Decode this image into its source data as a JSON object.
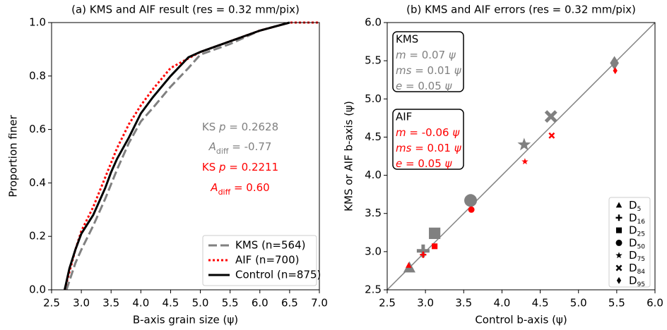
{
  "chart_data": [
    {
      "type": "line",
      "title": "(a) KMS and AIF result (res = 0.32 mm/pix)",
      "xlabel": "B-axis grain size (ψ)",
      "ylabel": "Proportion finer",
      "xlim": [
        2.5,
        7.0
      ],
      "xticks": [
        2.5,
        {
          "value": 3,
          "label": "3.0"
        },
        3.5,
        {
          "value": 4,
          "label": "4.0"
        },
        4.5,
        {
          "value": 5,
          "label": "5.0"
        },
        5.5,
        {
          "value": 6,
          "label": "6.0"
        },
        6.5,
        {
          "value": 7,
          "label": "7.0"
        }
      ],
      "ylim": [
        0,
        1
      ],
      "yticks": [
        {
          "value": 0,
          "label": "0.0"
        },
        0.2,
        0.4,
        0.6,
        0.8,
        {
          "value": 1,
          "label": "1.0"
        }
      ],
      "legend": "lower right",
      "series": [
        {
          "name": "KMS (n=564)",
          "color": "#808080",
          "dash": "dashed",
          "x": [
            2.75,
            2.9,
            3.0,
            3.2,
            3.4,
            3.6,
            3.8,
            4.0,
            4.2,
            4.5,
            4.8,
            5.0,
            5.5,
            6.0,
            6.5
          ],
          "values": [
            0,
            0.1,
            0.15,
            0.24,
            0.34,
            0.45,
            0.55,
            0.63,
            0.68,
            0.76,
            0.83,
            0.88,
            0.92,
            0.97,
            1.0
          ]
        },
        {
          "name": "AIF (n=700)",
          "color": "#ff0000",
          "dash": "dotted",
          "x": [
            2.72,
            2.9,
            3.0,
            3.2,
            3.4,
            3.6,
            3.8,
            4.0,
            4.2,
            4.5,
            5.0,
            5.5,
            6.0,
            6.5,
            7.0
          ],
          "values": [
            0,
            0.15,
            0.22,
            0.31,
            0.42,
            0.53,
            0.62,
            0.69,
            0.75,
            0.83,
            0.89,
            0.93,
            0.97,
            1.0,
            1.0
          ]
        },
        {
          "name": "Control (n=875)",
          "color": "#000000",
          "dash": "solid",
          "x": [
            2.72,
            2.8,
            2.9,
            3.0,
            3.2,
            3.4,
            3.5,
            3.6,
            3.8,
            4.0,
            4.2,
            4.5,
            4.8,
            5.0,
            5.5,
            6.0,
            6.5
          ],
          "values": [
            0,
            0.08,
            0.15,
            0.21,
            0.28,
            0.38,
            0.44,
            0.49,
            0.57,
            0.66,
            0.72,
            0.8,
            0.87,
            0.89,
            0.93,
            0.97,
            1.0
          ]
        }
      ],
      "annotations": [
        {
          "color": "#808080",
          "parts": [
            {
              "text": "KS ",
              "style": "normal"
            },
            {
              "text": "p",
              "style": "italic"
            },
            {
              "text": " = 0.2628",
              "style": "normal"
            }
          ]
        },
        {
          "color": "#808080",
          "parts": [
            {
              "text": "A",
              "style": "italic"
            },
            {
              "text": "diff",
              "style": "sub"
            },
            {
              "text": " = -0.77",
              "style": "normal"
            }
          ]
        },
        {
          "color": "#ff0000",
          "parts": [
            {
              "text": "KS ",
              "style": "normal"
            },
            {
              "text": "p",
              "style": "italic"
            },
            {
              "text": " = 0.2211",
              "style": "normal"
            }
          ]
        },
        {
          "color": "#ff0000",
          "parts": [
            {
              "text": "A",
              "style": "italic"
            },
            {
              "text": "diff",
              "style": "sub"
            },
            {
              "text": " = 0.60",
              "style": "normal"
            }
          ]
        }
      ]
    },
    {
      "type": "scatter",
      "title": "(b) KMS and AIF errors (res = 0.32 mm/pix)",
      "xlabel": "Control b-axis (ψ)",
      "ylabel": "KMS or AIF b-axis (ψ)",
      "xlim": [
        2.5,
        6.0
      ],
      "xticks": [
        2.5,
        {
          "value": 3,
          "label": "3.0"
        },
        3.5,
        {
          "value": 4,
          "label": "4.0"
        },
        4.5,
        {
          "value": 5,
          "label": "5.0"
        },
        5.5,
        {
          "value": 6,
          "label": "6.0"
        }
      ],
      "ylim": [
        2.5,
        6.0
      ],
      "yticks": [
        2.5,
        {
          "value": 3,
          "label": "3.0"
        },
        3.5,
        {
          "value": 4,
          "label": "4.0"
        },
        4.5,
        {
          "value": 5,
          "label": "5.0"
        },
        5.5,
        {
          "value": 6,
          "label": "6.0"
        }
      ],
      "diagonal": true,
      "series": [
        {
          "name": "KMS",
          "color": "#808080",
          "x": [
            2.79,
            2.97,
            3.12,
            3.59,
            4.29,
            4.64,
            5.47
          ],
          "values": [
            2.79,
            3.01,
            3.24,
            3.67,
            4.4,
            4.77,
            5.47
          ],
          "stats": [
            [
              {
                "text": "m",
                "style": "italic"
              },
              {
                "text": " = 0.07 ",
                "style": "normal"
              },
              {
                "text": "ψ",
                "style": "italic"
              }
            ],
            [
              {
                "text": "ms",
                "style": "italic"
              },
              {
                "text": " = 0.01 ",
                "style": "normal"
              },
              {
                "text": "ψ",
                "style": "italic"
              }
            ],
            [
              {
                "text": "e",
                "style": "italic"
              },
              {
                "text": " = 0.05 ",
                "style": "normal"
              },
              {
                "text": "ψ",
                "style": "italic"
              }
            ]
          ]
        },
        {
          "name": "AIF",
          "color": "#ff0000",
          "x": [
            2.78,
            2.97,
            3.12,
            3.6,
            4.3,
            4.65,
            5.48
          ],
          "values": [
            2.82,
            2.96,
            3.07,
            3.55,
            4.18,
            4.52,
            5.37
          ],
          "stats": [
            [
              {
                "text": "m",
                "style": "italic"
              },
              {
                "text": " = -0.06 ",
                "style": "normal"
              },
              {
                "text": "ψ",
                "style": "italic"
              }
            ],
            [
              {
                "text": "ms",
                "style": "italic"
              },
              {
                "text": " = 0.01 ",
                "style": "normal"
              },
              {
                "text": "ψ",
                "style": "italic"
              }
            ],
            [
              {
                "text": "e",
                "style": "italic"
              },
              {
                "text": " = 0.05 ",
                "style": "normal"
              },
              {
                "text": "ψ",
                "style": "italic"
              }
            ]
          ]
        }
      ],
      "markers": [
        {
          "shape": "triangle",
          "label": [
            "D",
            "5"
          ]
        },
        {
          "shape": "plus",
          "label": [
            "D",
            "16"
          ]
        },
        {
          "shape": "square",
          "label": [
            "D",
            "25"
          ]
        },
        {
          "shape": "circle",
          "label": [
            "D",
            "50"
          ]
        },
        {
          "shape": "star",
          "label": [
            "D",
            "75"
          ]
        },
        {
          "shape": "x",
          "label": [
            "D",
            "84"
          ]
        },
        {
          "shape": "diamond",
          "label": [
            "D",
            "95"
          ]
        }
      ]
    }
  ]
}
